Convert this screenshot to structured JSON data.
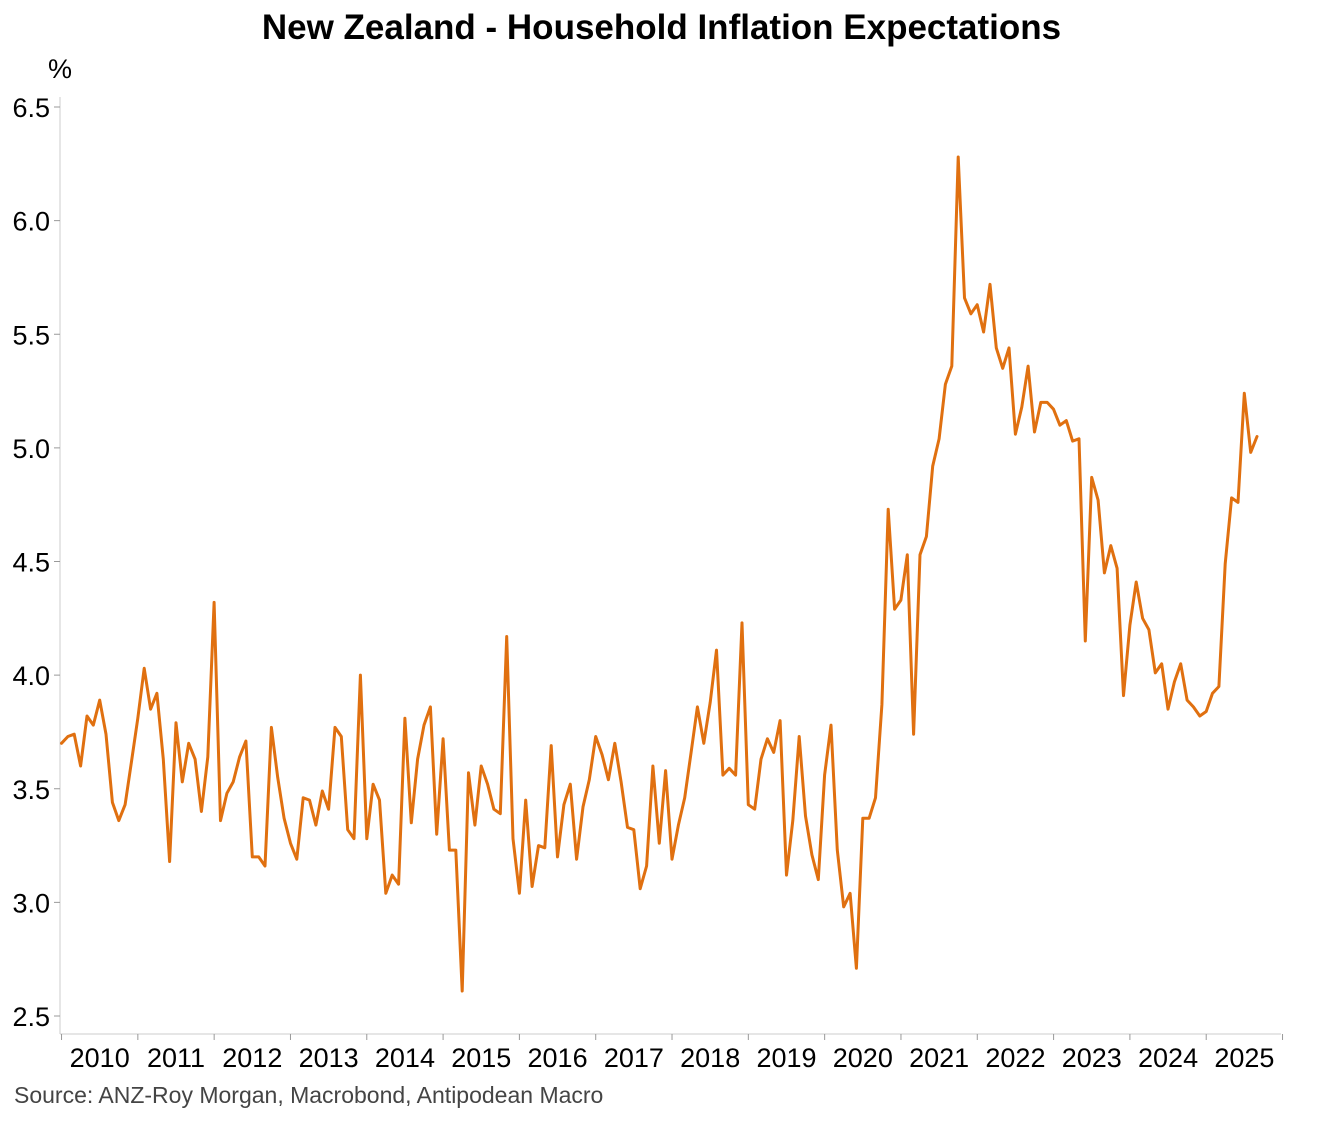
{
  "header": {
    "title": "New Zealand - Household Inflation Expectations",
    "unit": "%"
  },
  "footer": {
    "source": "Source: ANZ-Roy Morgan, Macrobond, Antipodean Macro"
  },
  "colors": {
    "line": "#E07010",
    "axis": "#cccccc",
    "text": "#000000"
  },
  "chart_data": {
    "type": "line",
    "title": "New Zealand - Household Inflation Expectations",
    "ylabel": "%",
    "xlabel": "",
    "ylim": [
      2.5,
      6.5
    ],
    "yticks": [
      "6.5",
      "6.0",
      "5.5",
      "5.0",
      "4.5",
      "4.0",
      "3.5",
      "3.0",
      "2.5"
    ],
    "ytick_values": [
      6.5,
      6.0,
      5.5,
      5.0,
      4.5,
      4.0,
      3.5,
      3.0,
      2.5
    ],
    "xlim": [
      2009.98,
      2025.98
    ],
    "xticks": [
      "2010",
      "2011",
      "2012",
      "2013",
      "2014",
      "2015",
      "2016",
      "2017",
      "2018",
      "2019",
      "2020",
      "2021",
      "2022",
      "2023",
      "2024",
      "2025"
    ],
    "xtick_values": [
      2010,
      2011,
      2012,
      2013,
      2014,
      2015,
      2016,
      2017,
      2018,
      2019,
      2020,
      2021,
      2022,
      2023,
      2024,
      2025
    ],
    "grid": false,
    "series": [
      {
        "name": "Household inflation expectations",
        "start": 2010.0,
        "step": 0.08333,
        "values": [
          3.7,
          3.73,
          3.74,
          3.6,
          3.82,
          3.78,
          3.89,
          3.74,
          3.44,
          3.36,
          3.43,
          3.62,
          3.81,
          4.03,
          3.85,
          3.92,
          3.63,
          3.18,
          3.79,
          3.53,
          3.7,
          3.63,
          3.4,
          3.64,
          4.32,
          3.36,
          3.48,
          3.53,
          3.64,
          3.71,
          3.2,
          3.2,
          3.16,
          3.77,
          3.55,
          3.37,
          3.26,
          3.19,
          3.46,
          3.45,
          3.34,
          3.49,
          3.41,
          3.77,
          3.73,
          3.32,
          3.28,
          4.0,
          3.28,
          3.52,
          3.45,
          3.04,
          3.12,
          3.08,
          3.81,
          3.35,
          3.63,
          3.78,
          3.86,
          3.3,
          3.72,
          3.23,
          3.23,
          2.61,
          3.57,
          3.34,
          3.6,
          3.52,
          3.41,
          3.39,
          4.17,
          3.28,
          3.04,
          3.45,
          3.07,
          3.25,
          3.24,
          3.69,
          3.2,
          3.43,
          3.52,
          3.19,
          3.42,
          3.54,
          3.73,
          3.65,
          3.54,
          3.7,
          3.53,
          3.33,
          3.32,
          3.06,
          3.16,
          3.6,
          3.26,
          3.58,
          3.19,
          3.34,
          3.46,
          3.66,
          3.86,
          3.7,
          3.88,
          4.11,
          3.56,
          3.59,
          3.56,
          4.23,
          3.43,
          3.41,
          3.63,
          3.72,
          3.66,
          3.8,
          3.12,
          3.36,
          3.73,
          3.38,
          3.21,
          3.1,
          3.56,
          3.78,
          3.23,
          2.98,
          3.04,
          2.71,
          3.37,
          3.37,
          3.46,
          3.87,
          4.73,
          4.29,
          4.33,
          4.53,
          3.74,
          4.53,
          4.61,
          4.92,
          5.04,
          5.28,
          5.36,
          6.28,
          5.66,
          5.59,
          5.63,
          5.51,
          5.72,
          5.44,
          5.35,
          5.44,
          5.06,
          5.18,
          5.36,
          5.07,
          5.2,
          5.2,
          5.17,
          5.1,
          5.12,
          5.03,
          5.04,
          4.15,
          4.87,
          4.77,
          4.45,
          4.57,
          4.47,
          3.91,
          4.22,
          4.41,
          4.25,
          4.2,
          4.01,
          4.05,
          3.85,
          3.97,
          4.05,
          3.89,
          3.86,
          3.82,
          3.84,
          3.92,
          3.95,
          4.49,
          4.78,
          4.76,
          5.24,
          4.98,
          5.05
        ]
      }
    ]
  }
}
